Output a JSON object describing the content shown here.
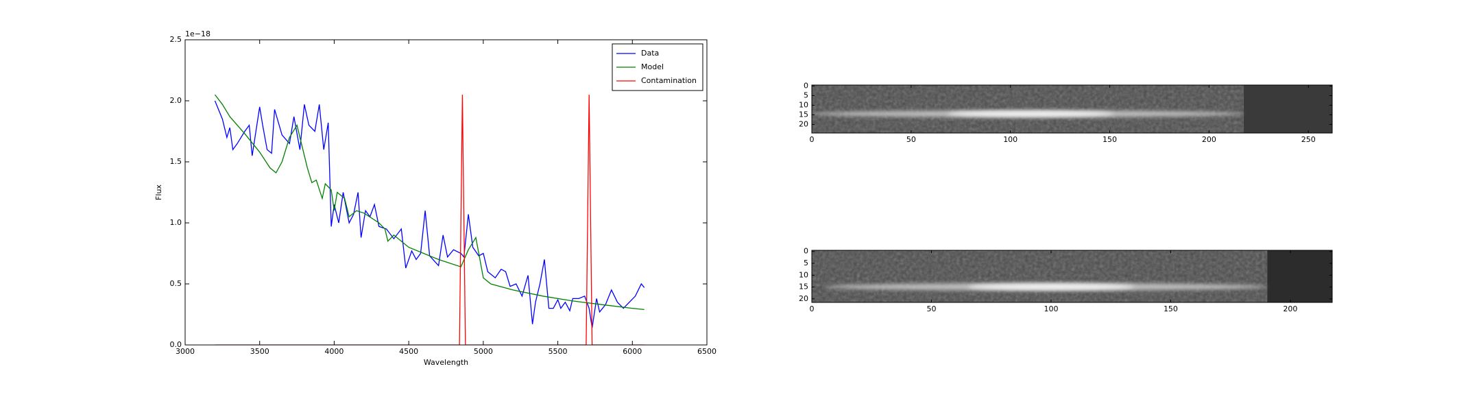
{
  "chart_data": [
    {
      "type": "line",
      "xlabel": "Wavelength",
      "ylabel": "Flux",
      "y_offset_label": "1e−18",
      "xlim": [
        3000,
        6500
      ],
      "ylim": [
        0,
        2.5
      ],
      "xticks": [
        3000,
        3500,
        4000,
        4500,
        5000,
        5500,
        6000,
        6500
      ],
      "yticks": [
        {
          "value": 0,
          "label": "0.0"
        },
        {
          "value": 0.5,
          "label": "0.5"
        },
        {
          "value": 1,
          "label": "1.0"
        },
        {
          "value": 1.5,
          "label": "1.5"
        },
        {
          "value": 2,
          "label": "2.0"
        },
        {
          "value": 2.5,
          "label": "2.5"
        }
      ],
      "legend": "upper right",
      "series": [
        {
          "name": "Data",
          "color": "#0000ff",
          "x": [
            3200,
            3250,
            3280,
            3300,
            3320,
            3350,
            3400,
            3430,
            3450,
            3500,
            3520,
            3550,
            3580,
            3600,
            3650,
            3700,
            3730,
            3770,
            3800,
            3830,
            3870,
            3900,
            3930,
            3960,
            3980,
            4000,
            4030,
            4060,
            4100,
            4130,
            4160,
            4180,
            4210,
            4240,
            4270,
            4300,
            4350,
            4400,
            4450,
            4480,
            4520,
            4550,
            4580,
            4610,
            4640,
            4700,
            4730,
            4760,
            4800,
            4850,
            4870,
            4900,
            4930,
            4970,
            5000,
            5030,
            5080,
            5120,
            5150,
            5180,
            5220,
            5260,
            5300,
            5330,
            5350,
            5380,
            5410,
            5440,
            5470,
            5500,
            5520,
            5550,
            5580,
            5600,
            5640,
            5680,
            5710,
            5730,
            5760,
            5780,
            5820,
            5860,
            5900,
            5940,
            5980,
            6020,
            6060,
            6080
          ],
          "values": [
            2.0,
            1.85,
            1.7,
            1.78,
            1.6,
            1.65,
            1.75,
            1.8,
            1.55,
            1.95,
            1.8,
            1.6,
            1.57,
            1.93,
            1.72,
            1.65,
            1.87,
            1.6,
            1.97,
            1.8,
            1.75,
            1.97,
            1.6,
            1.82,
            0.97,
            1.15,
            1.0,
            1.25,
            1.0,
            1.07,
            1.25,
            0.88,
            1.1,
            1.05,
            1.15,
            0.97,
            0.95,
            0.87,
            0.95,
            0.63,
            0.77,
            0.7,
            0.75,
            1.1,
            0.73,
            0.65,
            0.9,
            0.72,
            0.78,
            0.75,
            0.72,
            1.07,
            0.8,
            0.73,
            0.75,
            0.6,
            0.55,
            0.62,
            0.6,
            0.48,
            0.5,
            0.4,
            0.57,
            0.17,
            0.35,
            0.5,
            0.7,
            0.3,
            0.3,
            0.37,
            0.3,
            0.35,
            0.28,
            0.38,
            0.38,
            0.4,
            0.3,
            0.14,
            0.38,
            0.27,
            0.33,
            0.45,
            0.35,
            0.3,
            0.35,
            0.4,
            0.5,
            0.47
          ]
        },
        {
          "name": "Model",
          "color": "#008000",
          "x": [
            3200,
            3250,
            3300,
            3400,
            3500,
            3570,
            3610,
            3650,
            3700,
            3750,
            3780,
            3820,
            3850,
            3880,
            3920,
            3940,
            3980,
            4000,
            4020,
            4070,
            4100,
            4150,
            4200,
            4300,
            4340,
            4360,
            4400,
            4450,
            4500,
            4600,
            4700,
            4850,
            4900,
            4950,
            5000,
            5050,
            5200,
            5400,
            5600,
            5800,
            6000,
            6080
          ],
          "values": [
            2.05,
            1.97,
            1.87,
            1.73,
            1.58,
            1.45,
            1.41,
            1.5,
            1.7,
            1.8,
            1.65,
            1.45,
            1.33,
            1.35,
            1.2,
            1.32,
            1.27,
            1.1,
            1.25,
            1.2,
            1.05,
            1.1,
            1.08,
            1.0,
            0.95,
            0.85,
            0.9,
            0.85,
            0.8,
            0.75,
            0.7,
            0.64,
            0.78,
            0.88,
            0.55,
            0.5,
            0.45,
            0.4,
            0.36,
            0.33,
            0.3,
            0.29
          ]
        },
        {
          "name": "Contamination",
          "color": "#ff0000",
          "x": [
            3200,
            4840,
            4860,
            4880,
            5690,
            5710,
            5730,
            6080
          ],
          "values": [
            0,
            0,
            2.05,
            0,
            0,
            2.05,
            0,
            0
          ]
        }
      ]
    },
    {
      "type": "image",
      "colormap": "gray",
      "xlim": [
        0,
        262
      ],
      "ylim": [
        24.5,
        -0.5
      ],
      "xticks": [
        0,
        50,
        100,
        150,
        200,
        250
      ],
      "yticks": [
        0,
        5,
        10,
        15,
        20
      ]
    },
    {
      "type": "image",
      "colormap": "gray",
      "xlim": [
        0,
        217.5
      ],
      "ylim": [
        21.5,
        -0.5
      ],
      "xticks": [
        0,
        50,
        100,
        150,
        200
      ],
      "yticks": [
        0,
        5,
        10,
        15,
        20
      ]
    }
  ]
}
